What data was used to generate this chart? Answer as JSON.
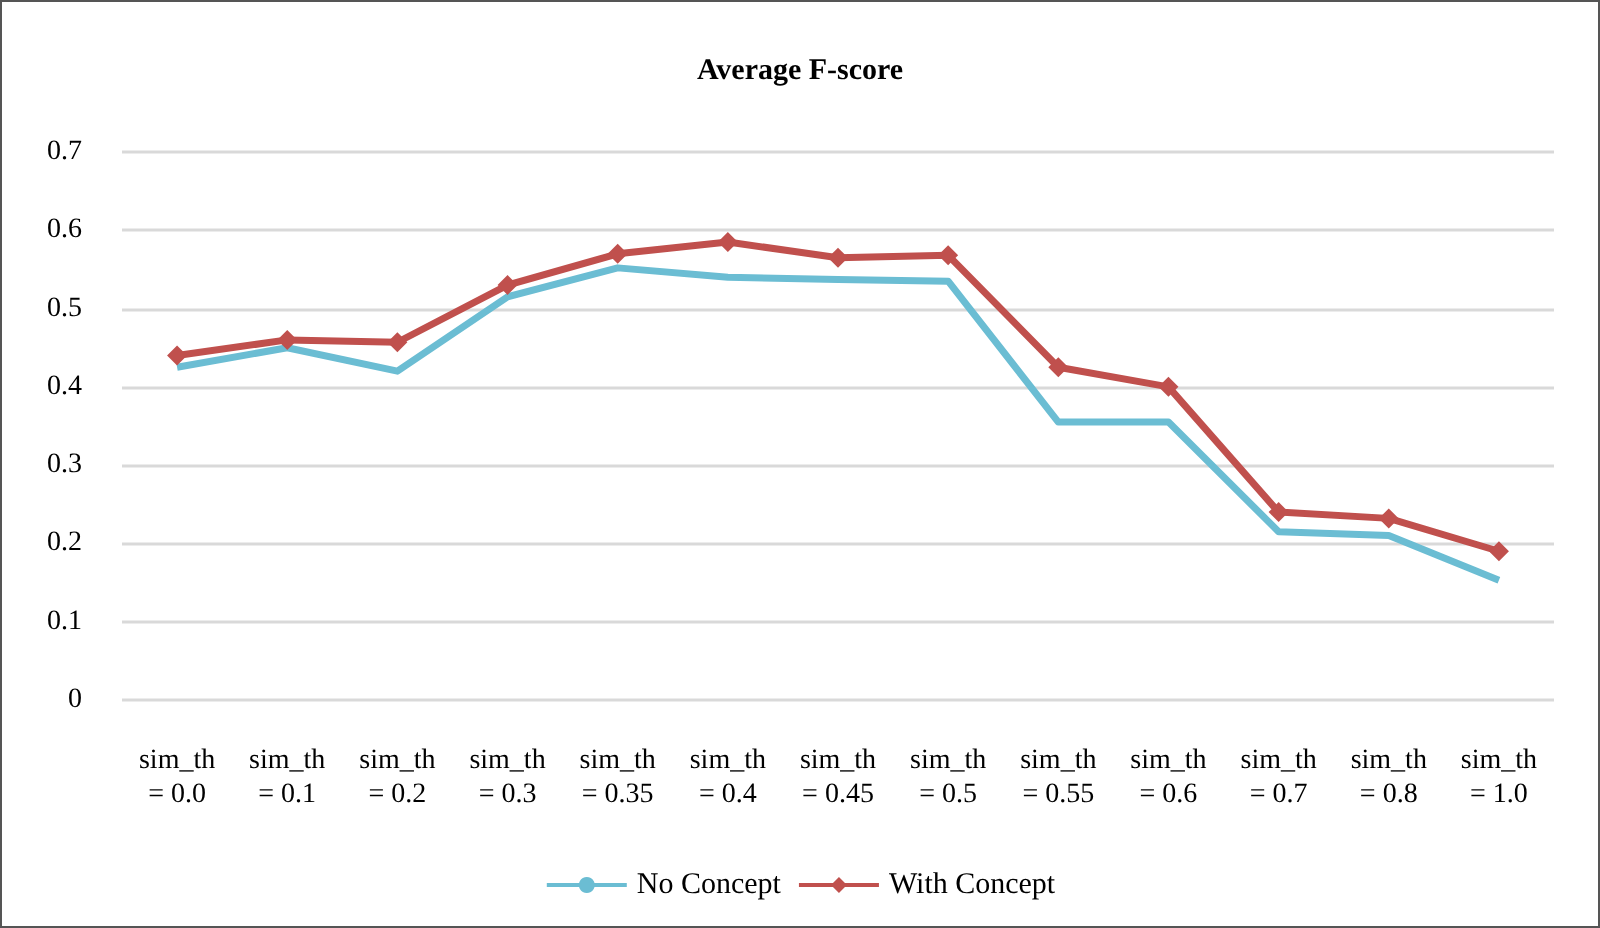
{
  "chart_data": {
    "type": "line",
    "title": "Average F-score",
    "categories": [
      "sim_th\n= 0.0",
      "sim_th\n= 0.1",
      "sim_th\n= 0.2",
      "sim_th\n= 0.3",
      "sim_th\n= 0.35",
      "sim_th\n= 0.4",
      "sim_th\n= 0.45",
      "sim_th\n= 0.5",
      "sim_th\n= 0.55",
      "sim_th\n= 0.6",
      "sim_th\n= 0.7",
      "sim_th\n= 0.8",
      "sim_th\n= 1.0"
    ],
    "series": [
      {
        "name": "No Concept",
        "color": "#6bbdd3",
        "marker": "none",
        "values": [
          0.425,
          0.45,
          0.42,
          0.515,
          0.552,
          0.54,
          0.537,
          0.535,
          0.355,
          0.355,
          0.215,
          0.21,
          0.153
        ]
      },
      {
        "name": "With Concept",
        "color": "#c0504d",
        "marker": "diamond",
        "values": [
          0.44,
          0.46,
          0.457,
          0.53,
          0.57,
          0.585,
          0.565,
          0.568,
          0.425,
          0.4,
          0.24,
          0.232,
          0.19
        ]
      }
    ],
    "ylim": [
      0,
      0.7
    ],
    "yticks": [
      0,
      0.1,
      0.2,
      0.3,
      0.4,
      0.5,
      0.6,
      0.7
    ],
    "grid": "y",
    "legend": "bottom"
  }
}
